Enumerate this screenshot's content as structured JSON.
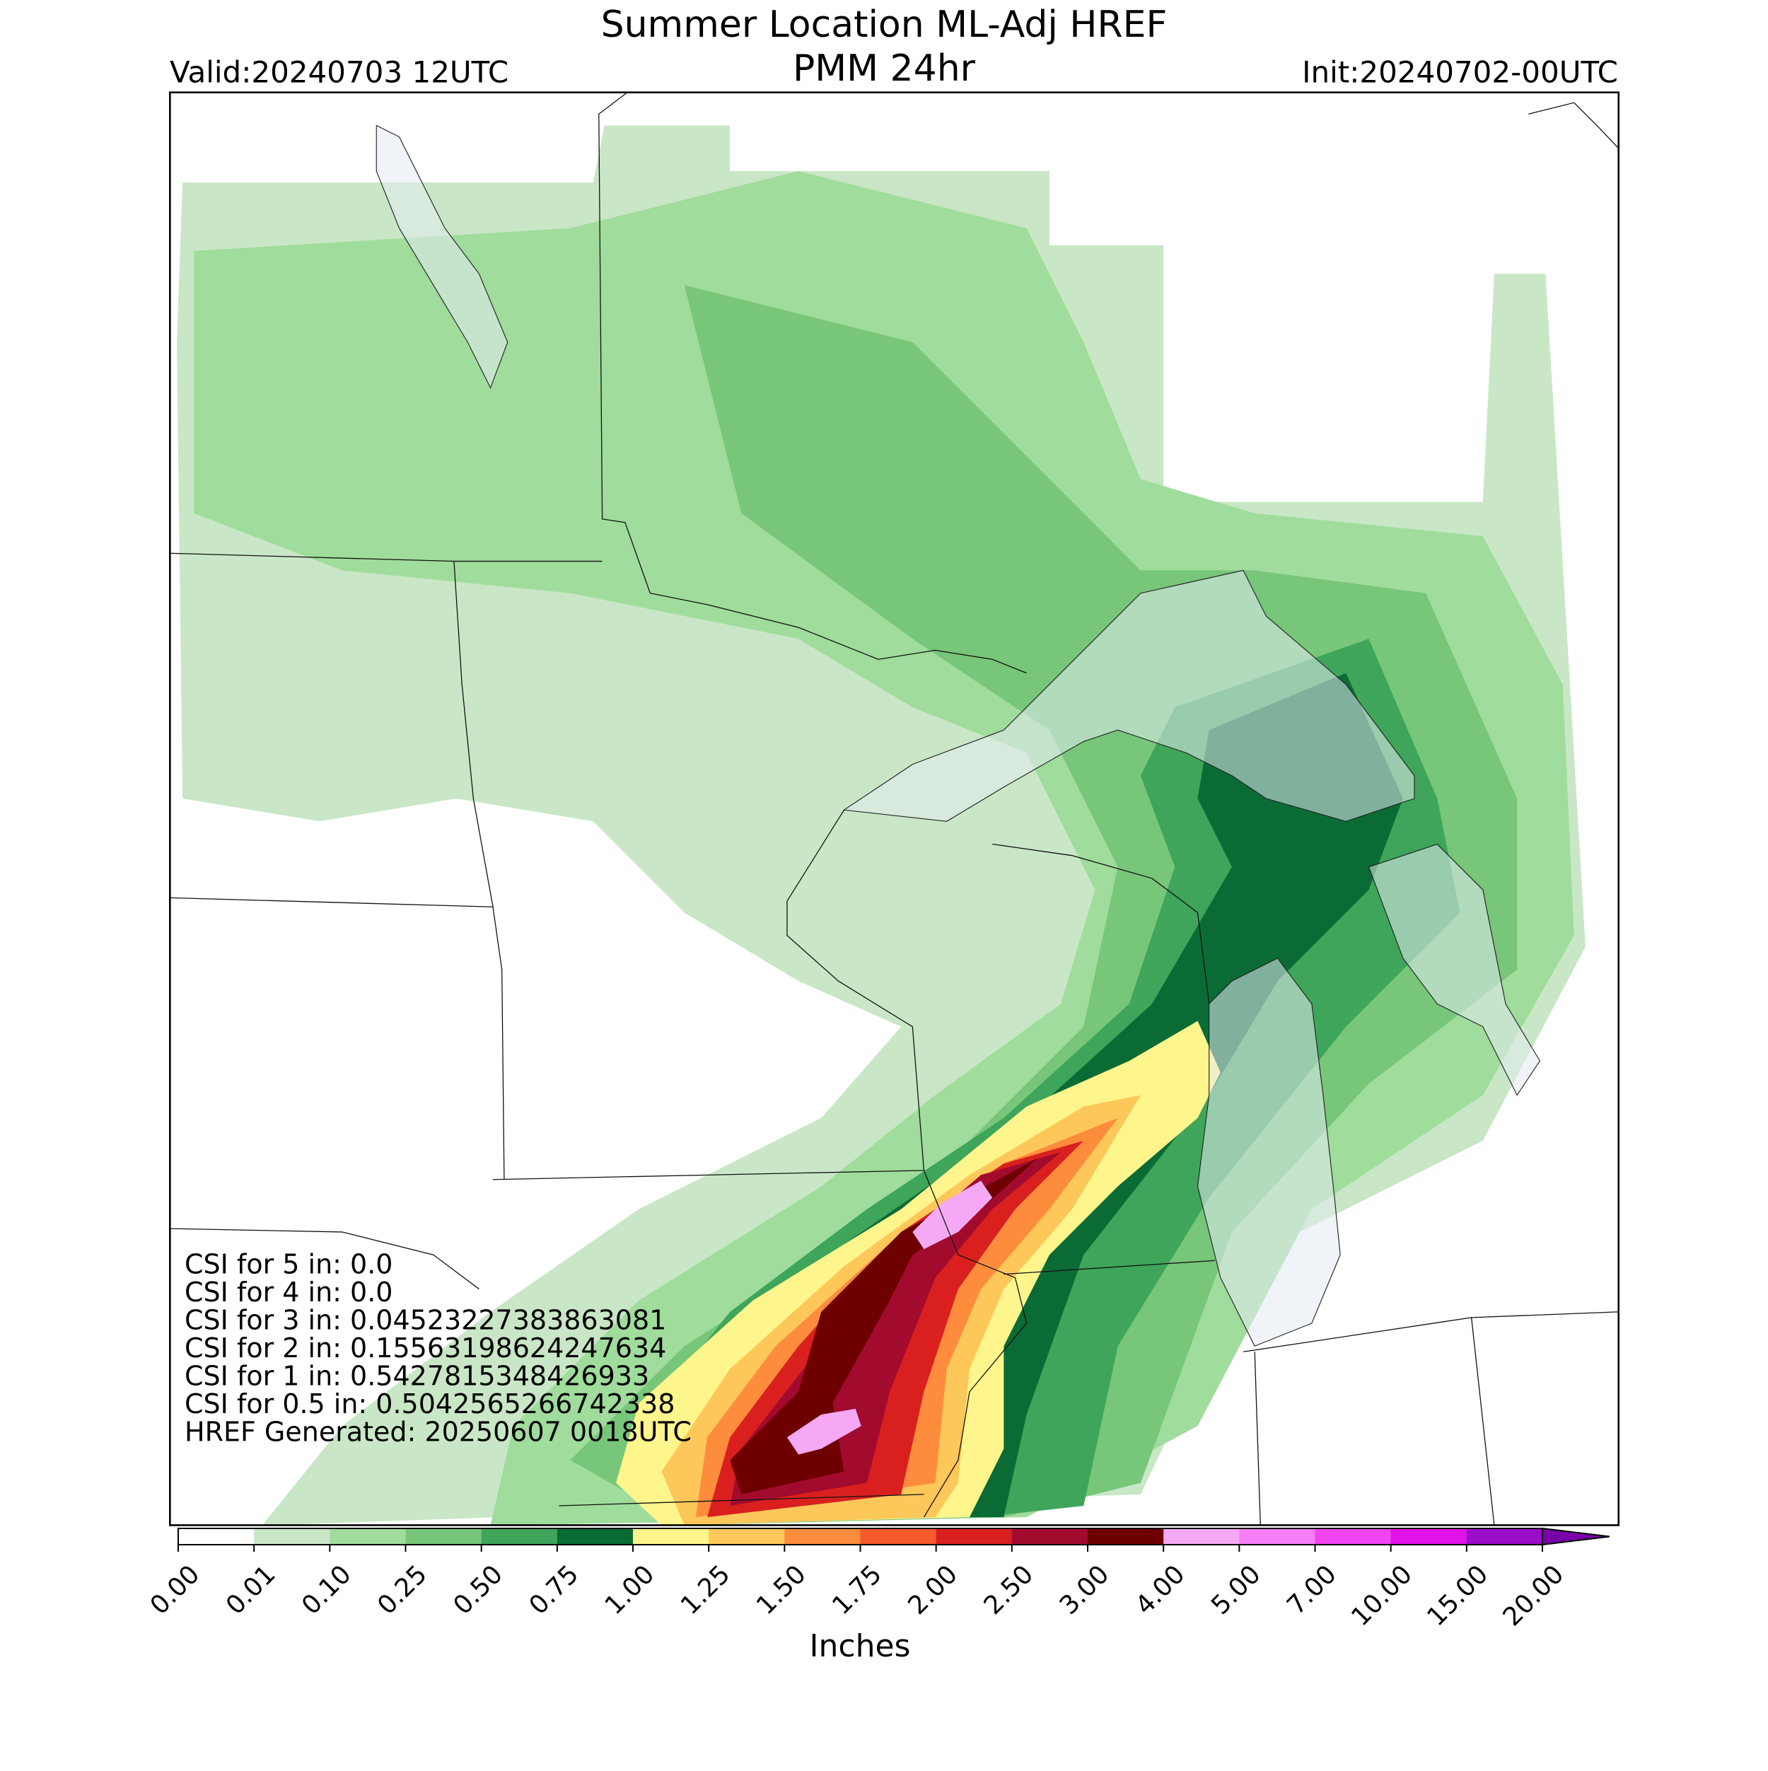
{
  "chart_data": {
    "type": "map",
    "title": "Summer Location ML-Adj HREF",
    "subtitle": "PMM 24hr",
    "valid": "Valid:20240703 12UTC",
    "init": "Init:20240702-00UTC",
    "colorbar": {
      "label": "Inches",
      "ticks": [
        {
          "value": 0,
          "label": "0.00"
        },
        {
          "value": 0.01,
          "label": "0.01"
        },
        {
          "value": 0.1,
          "label": "0.10"
        },
        {
          "value": 0.25,
          "label": "0.25"
        },
        {
          "value": 0.5,
          "label": "0.50"
        },
        {
          "value": 0.75,
          "label": "0.75"
        },
        {
          "value": 1,
          "label": "1.00"
        },
        {
          "value": 1.25,
          "label": "1.25"
        },
        {
          "value": 1.5,
          "label": "1.50"
        },
        {
          "value": 1.75,
          "label": "1.75"
        },
        {
          "value": 2,
          "label": "2.00"
        },
        {
          "value": 2.5,
          "label": "2.50"
        },
        {
          "value": 3,
          "label": "3.00"
        },
        {
          "value": 4,
          "label": "4.00"
        },
        {
          "value": 5,
          "label": "5.00"
        },
        {
          "value": 7,
          "label": "7.00"
        },
        {
          "value": 10,
          "label": "10.00"
        },
        {
          "value": 15,
          "label": "15.00"
        },
        {
          "value": 20,
          "label": "20.00"
        }
      ],
      "colors": [
        "#ffffff",
        "#c9e7c6",
        "#a0dc9c",
        "#77c67a",
        "#3ea55a",
        "#0b6b35",
        "#fef58c",
        "#fec75a",
        "#fd8c3c",
        "#f45a2b",
        "#d9201f",
        "#a20b2e",
        "#6e0000",
        "#f5a9f5",
        "#f57df5",
        "#f244f2",
        "#e012e8",
        "#9a0cc8"
      ],
      "extend_color": "#7a00a8"
    },
    "annotations": [
      "CSI for 5 in: 0.0",
      "CSI for 4 in: 0.0",
      "CSI for 3 in: 0.04523227383863081",
      "CSI for 2 in: 0.15563198624247634",
      "CSI for 1 in: 0.5427815348426933",
      "CSI for 0.5 in: 0.5042565266742338",
      "HREF Generated: 20250607 0018UTC"
    ]
  }
}
